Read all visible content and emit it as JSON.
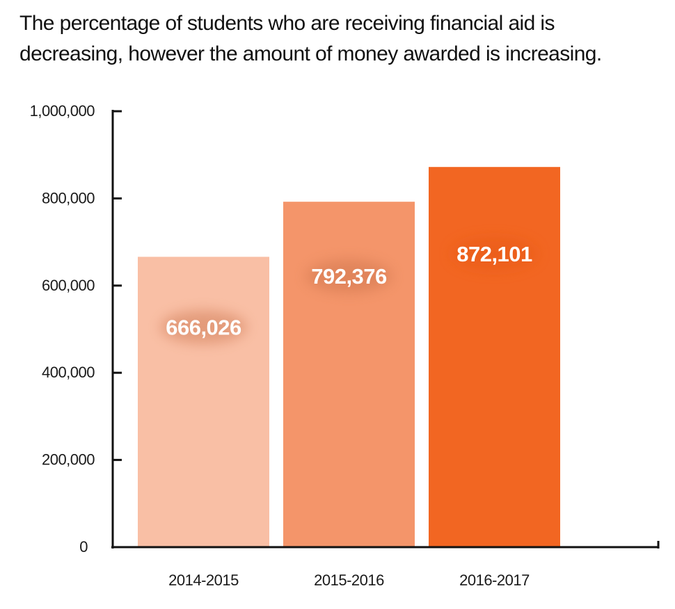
{
  "chart_data": {
    "type": "bar",
    "title": "The percentage of students who are receiving financial aid is decreasing, however the amount of money awarded is increasing.",
    "categories": [
      "2014-2015",
      "2015-2016",
      "2016-2017"
    ],
    "values": [
      666026,
      792376,
      872101
    ],
    "value_labels": [
      "666,026",
      "792,376",
      "872,101"
    ],
    "colors": [
      "#f9bfa5",
      "#f4956a",
      "#f26622"
    ],
    "ylim": [
      0,
      1000000
    ],
    "yticks": [
      0,
      200000,
      400000,
      600000,
      800000,
      1000000
    ],
    "ytick_labels": [
      "0",
      "200,000",
      "400,000",
      "600,000",
      "800,000",
      "1,000,000"
    ],
    "xlabel": "",
    "ylabel": "",
    "grid": false,
    "legend": "none"
  }
}
